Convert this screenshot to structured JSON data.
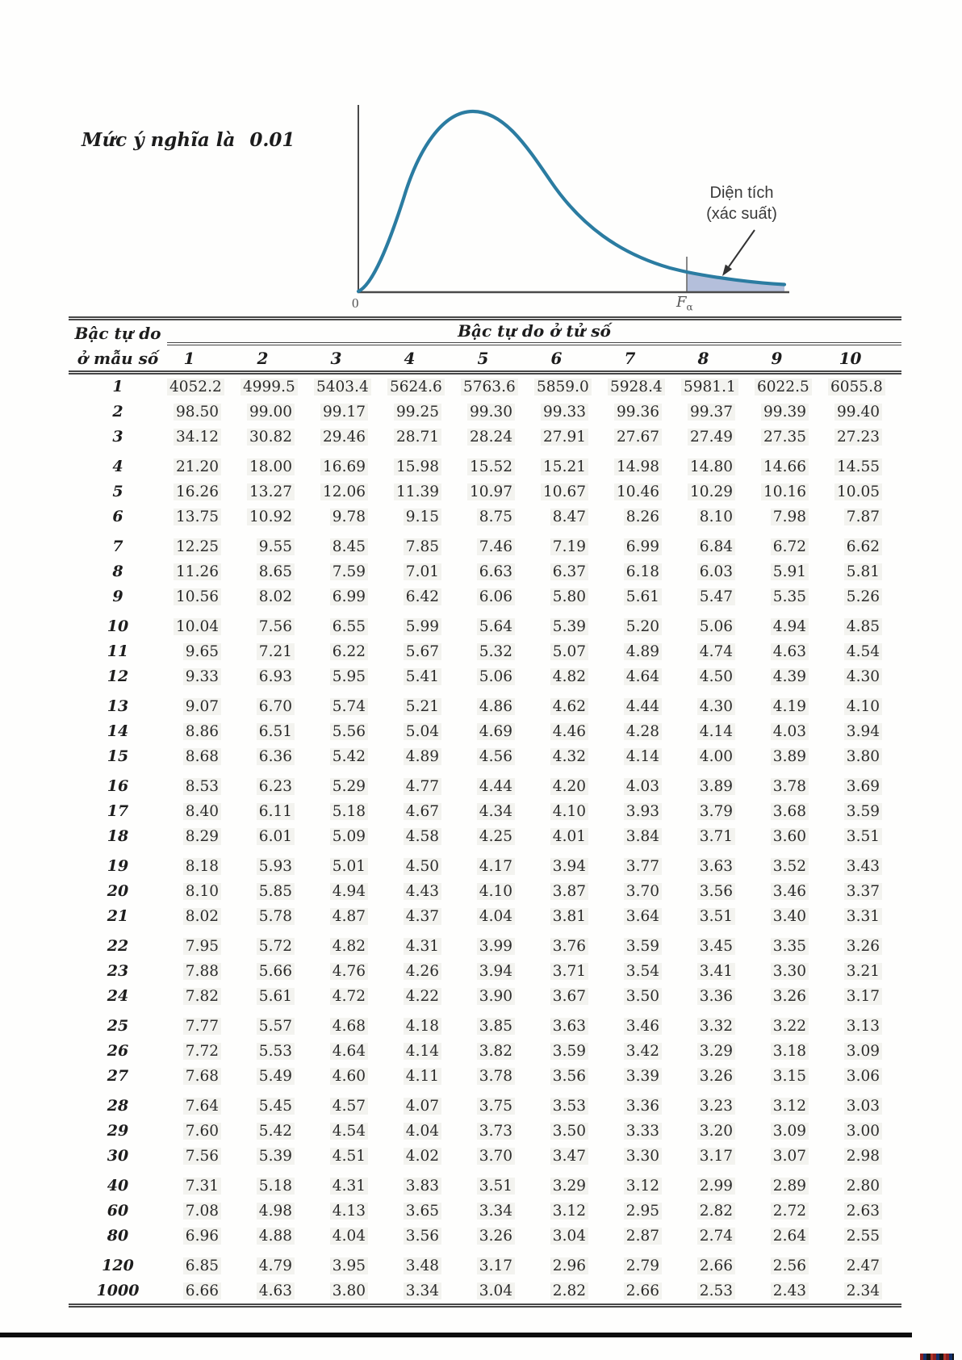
{
  "title": {
    "label": "Mức ý nghĩa là",
    "value": "0.01"
  },
  "figure": {
    "area_label_line1": "Diện tích",
    "area_label_line2": "(xác suất)",
    "x_origin_label": "0",
    "x_critical_label": "F",
    "x_critical_sub": "α",
    "curve_color": "#2b7ca1",
    "shade_color": "#b4bfdb"
  },
  "table": {
    "row_header_line1": "Bậc tự do",
    "row_header_line2": "ở mẫu số",
    "col_group_title": "Bậc tự do ở tử số",
    "columns": [
      "1",
      "2",
      "3",
      "4",
      "5",
      "6",
      "7",
      "8",
      "9",
      "10"
    ],
    "rows": [
      {
        "df": "1",
        "values": [
          "4052.2",
          "4999.5",
          "5403.4",
          "5624.6",
          "5763.6",
          "5859.0",
          "5928.4",
          "5981.1",
          "6022.5",
          "6055.8"
        ]
      },
      {
        "df": "2",
        "values": [
          "98.50",
          "99.00",
          "99.17",
          "99.25",
          "99.30",
          "99.33",
          "99.36",
          "99.37",
          "99.39",
          "99.40"
        ]
      },
      {
        "df": "3",
        "values": [
          "34.12",
          "30.82",
          "29.46",
          "28.71",
          "28.24",
          "27.91",
          "27.67",
          "27.49",
          "27.35",
          "27.23"
        ]
      },
      {
        "df": "4",
        "values": [
          "21.20",
          "18.00",
          "16.69",
          "15.98",
          "15.52",
          "15.21",
          "14.98",
          "14.80",
          "14.66",
          "14.55"
        ]
      },
      {
        "df": "5",
        "values": [
          "16.26",
          "13.27",
          "12.06",
          "11.39",
          "10.97",
          "10.67",
          "10.46",
          "10.29",
          "10.16",
          "10.05"
        ]
      },
      {
        "df": "6",
        "values": [
          "13.75",
          "10.92",
          "9.78",
          "9.15",
          "8.75",
          "8.47",
          "8.26",
          "8.10",
          "7.98",
          "7.87"
        ]
      },
      {
        "df": "7",
        "values": [
          "12.25",
          "9.55",
          "8.45",
          "7.85",
          "7.46",
          "7.19",
          "6.99",
          "6.84",
          "6.72",
          "6.62"
        ]
      },
      {
        "df": "8",
        "values": [
          "11.26",
          "8.65",
          "7.59",
          "7.01",
          "6.63",
          "6.37",
          "6.18",
          "6.03",
          "5.91",
          "5.81"
        ]
      },
      {
        "df": "9",
        "values": [
          "10.56",
          "8.02",
          "6.99",
          "6.42",
          "6.06",
          "5.80",
          "5.61",
          "5.47",
          "5.35",
          "5.26"
        ]
      },
      {
        "df": "10",
        "values": [
          "10.04",
          "7.56",
          "6.55",
          "5.99",
          "5.64",
          "5.39",
          "5.20",
          "5.06",
          "4.94",
          "4.85"
        ]
      },
      {
        "df": "11",
        "values": [
          "9.65",
          "7.21",
          "6.22",
          "5.67",
          "5.32",
          "5.07",
          "4.89",
          "4.74",
          "4.63",
          "4.54"
        ]
      },
      {
        "df": "12",
        "values": [
          "9.33",
          "6.93",
          "5.95",
          "5.41",
          "5.06",
          "4.82",
          "4.64",
          "4.50",
          "4.39",
          "4.30"
        ]
      },
      {
        "df": "13",
        "values": [
          "9.07",
          "6.70",
          "5.74",
          "5.21",
          "4.86",
          "4.62",
          "4.44",
          "4.30",
          "4.19",
          "4.10"
        ]
      },
      {
        "df": "14",
        "values": [
          "8.86",
          "6.51",
          "5.56",
          "5.04",
          "4.69",
          "4.46",
          "4.28",
          "4.14",
          "4.03",
          "3.94"
        ]
      },
      {
        "df": "15",
        "values": [
          "8.68",
          "6.36",
          "5.42",
          "4.89",
          "4.56",
          "4.32",
          "4.14",
          "4.00",
          "3.89",
          "3.80"
        ]
      },
      {
        "df": "16",
        "values": [
          "8.53",
          "6.23",
          "5.29",
          "4.77",
          "4.44",
          "4.20",
          "4.03",
          "3.89",
          "3.78",
          "3.69"
        ]
      },
      {
        "df": "17",
        "values": [
          "8.40",
          "6.11",
          "5.18",
          "4.67",
          "4.34",
          "4.10",
          "3.93",
          "3.79",
          "3.68",
          "3.59"
        ]
      },
      {
        "df": "18",
        "values": [
          "8.29",
          "6.01",
          "5.09",
          "4.58",
          "4.25",
          "4.01",
          "3.84",
          "3.71",
          "3.60",
          "3.51"
        ]
      },
      {
        "df": "19",
        "values": [
          "8.18",
          "5.93",
          "5.01",
          "4.50",
          "4.17",
          "3.94",
          "3.77",
          "3.63",
          "3.52",
          "3.43"
        ]
      },
      {
        "df": "20",
        "values": [
          "8.10",
          "5.85",
          "4.94",
          "4.43",
          "4.10",
          "3.87",
          "3.70",
          "3.56",
          "3.46",
          "3.37"
        ]
      },
      {
        "df": "21",
        "values": [
          "8.02",
          "5.78",
          "4.87",
          "4.37",
          "4.04",
          "3.81",
          "3.64",
          "3.51",
          "3.40",
          "3.31"
        ]
      },
      {
        "df": "22",
        "values": [
          "7.95",
          "5.72",
          "4.82",
          "4.31",
          "3.99",
          "3.76",
          "3.59",
          "3.45",
          "3.35",
          "3.26"
        ]
      },
      {
        "df": "23",
        "values": [
          "7.88",
          "5.66",
          "4.76",
          "4.26",
          "3.94",
          "3.71",
          "3.54",
          "3.41",
          "3.30",
          "3.21"
        ]
      },
      {
        "df": "24",
        "values": [
          "7.82",
          "5.61",
          "4.72",
          "4.22",
          "3.90",
          "3.67",
          "3.50",
          "3.36",
          "3.26",
          "3.17"
        ]
      },
      {
        "df": "25",
        "values": [
          "7.77",
          "5.57",
          "4.68",
          "4.18",
          "3.85",
          "3.63",
          "3.46",
          "3.32",
          "3.22",
          "3.13"
        ]
      },
      {
        "df": "26",
        "values": [
          "7.72",
          "5.53",
          "4.64",
          "4.14",
          "3.82",
          "3.59",
          "3.42",
          "3.29",
          "3.18",
          "3.09"
        ]
      },
      {
        "df": "27",
        "values": [
          "7.68",
          "5.49",
          "4.60",
          "4.11",
          "3.78",
          "3.56",
          "3.39",
          "3.26",
          "3.15",
          "3.06"
        ]
      },
      {
        "df": "28",
        "values": [
          "7.64",
          "5.45",
          "4.57",
          "4.07",
          "3.75",
          "3.53",
          "3.36",
          "3.23",
          "3.12",
          "3.03"
        ]
      },
      {
        "df": "29",
        "values": [
          "7.60",
          "5.42",
          "4.54",
          "4.04",
          "3.73",
          "3.50",
          "3.33",
          "3.20",
          "3.09",
          "3.00"
        ]
      },
      {
        "df": "30",
        "values": [
          "7.56",
          "5.39",
          "4.51",
          "4.02",
          "3.70",
          "3.47",
          "3.30",
          "3.17",
          "3.07",
          "2.98"
        ]
      },
      {
        "df": "40",
        "values": [
          "7.31",
          "5.18",
          "4.31",
          "3.83",
          "3.51",
          "3.29",
          "3.12",
          "2.99",
          "2.89",
          "2.80"
        ]
      },
      {
        "df": "60",
        "values": [
          "7.08",
          "4.98",
          "4.13",
          "3.65",
          "3.34",
          "3.12",
          "2.95",
          "2.82",
          "2.72",
          "2.63"
        ]
      },
      {
        "df": "80",
        "values": [
          "6.96",
          "4.88",
          "4.04",
          "3.56",
          "3.26",
          "3.04",
          "2.87",
          "2.74",
          "2.64",
          "2.55"
        ]
      },
      {
        "df": "120",
        "values": [
          "6.85",
          "4.79",
          "3.95",
          "3.48",
          "3.17",
          "2.96",
          "2.79",
          "2.66",
          "2.56",
          "2.47"
        ]
      },
      {
        "df": "1000",
        "values": [
          "6.66",
          "4.63",
          "3.80",
          "3.34",
          "3.04",
          "2.82",
          "2.66",
          "2.53",
          "2.43",
          "2.34"
        ]
      }
    ]
  }
}
